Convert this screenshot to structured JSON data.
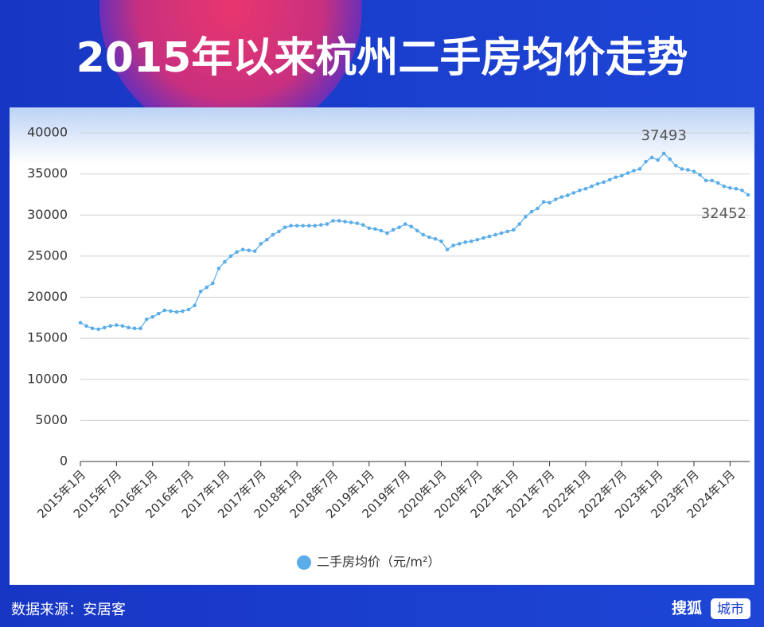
{
  "chart_data": {
    "type": "line",
    "title": "2015年以来杭州二手房均价走势",
    "categories": [
      "2015年1月",
      null,
      null,
      null,
      null,
      null,
      "2015年7月",
      null,
      null,
      null,
      null,
      null,
      "2016年1月",
      null,
      null,
      null,
      null,
      null,
      "2016年7月",
      null,
      null,
      null,
      null,
      null,
      "2017年1月",
      null,
      null,
      null,
      null,
      null,
      "2017年7月",
      null,
      null,
      null,
      null,
      null,
      "2018年1月",
      null,
      null,
      null,
      null,
      null,
      "2018年7月",
      null,
      null,
      null,
      null,
      null,
      "2019年1月",
      null,
      null,
      null,
      null,
      null,
      "2019年7月",
      null,
      null,
      null,
      null,
      null,
      "2020年1月",
      null,
      null,
      null,
      null,
      null,
      "2020年7月",
      null,
      null,
      null,
      null,
      null,
      "2021年1月",
      null,
      null,
      null,
      null,
      null,
      "2021年7月",
      null,
      null,
      null,
      null,
      null,
      "2022年1月",
      null,
      null,
      null,
      null,
      null,
      "2022年7月",
      null,
      null,
      null,
      null,
      null,
      "2023年1月",
      null,
      null,
      null,
      null,
      null,
      "2023年7月",
      null,
      null,
      null,
      null,
      null,
      "2024年1月",
      null,
      null,
      null
    ],
    "series": [
      {
        "name": "二手房均价（元/m²）",
        "color": "#5aade8",
        "values": [
          16900,
          16500,
          16200,
          16100,
          16300,
          16500,
          16600,
          16500,
          16300,
          16200,
          16200,
          17300,
          17600,
          18000,
          18400,
          18300,
          18200,
          18300,
          18500,
          19000,
          20700,
          21200,
          21700,
          23500,
          24300,
          25000,
          25500,
          25800,
          25700,
          25600,
          26500,
          27000,
          27600,
          28000,
          28500,
          28700,
          28700,
          28700,
          28700,
          28700,
          28800,
          28900,
          29300,
          29300,
          29200,
          29100,
          29000,
          28800,
          28400,
          28300,
          28100,
          27800,
          28200,
          28500,
          28900,
          28600,
          28100,
          27600,
          27300,
          27100,
          26800,
          25800,
          26300,
          26500,
          26700,
          26800,
          27000,
          27200,
          27400,
          27600,
          27800,
          28000,
          28200,
          28900,
          29800,
          30400,
          30800,
          31600,
          31500,
          31900,
          32200,
          32400,
          32700,
          33000,
          33200,
          33500,
          33800,
          34000,
          34300,
          34600,
          34800,
          35100,
          35400,
          35600,
          36500,
          37000,
          36700,
          37493,
          36800,
          36000,
          35600,
          35500,
          35300,
          34900,
          34200,
          34200,
          33900,
          33500,
          33300,
          33200,
          33000,
          32452
        ]
      }
    ],
    "labeled_points": [
      97,
      111
    ],
    "ylim": [
      0,
      40000
    ],
    "yticks": [
      0,
      5000,
      10000,
      15000,
      20000,
      25000,
      30000,
      35000,
      40000
    ],
    "grid": true
  },
  "footer": {
    "source": "数据来源：安居客",
    "brand": "搜狐",
    "brand_tag": "城市"
  }
}
